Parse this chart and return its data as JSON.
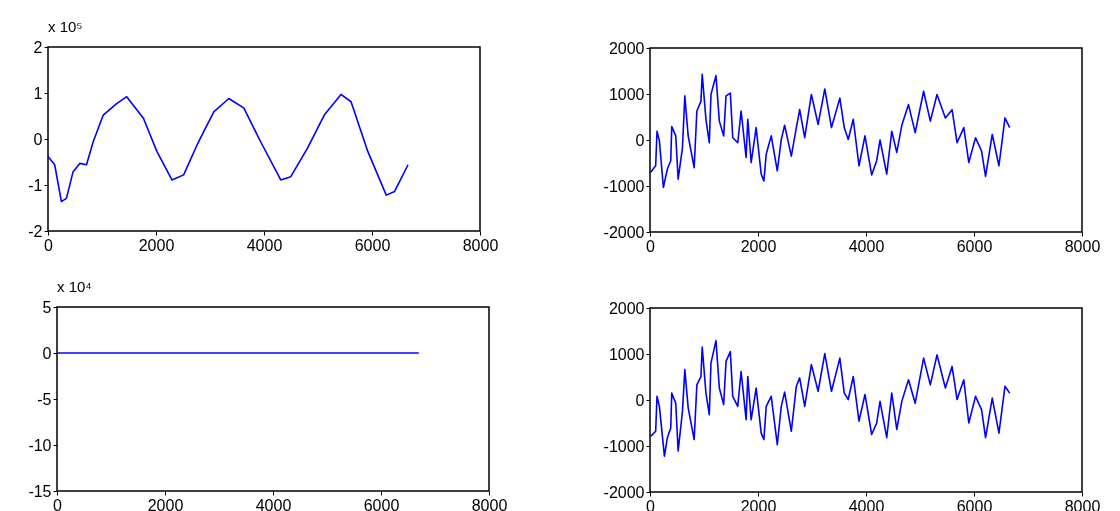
{
  "chart_data": [
    {
      "type": "line",
      "annotations": [
        "x 10⁵"
      ],
      "xlim": [
        0,
        8000
      ],
      "xticks": [
        0,
        2000,
        4000,
        6000,
        8000
      ],
      "ylim": [
        -2,
        2
      ],
      "yticks": [
        -2,
        -1,
        0,
        1,
        2
      ],
      "x": [
        0,
        124,
        248,
        341,
        465,
        589,
        713,
        837,
        1023,
        1271,
        1457,
        1767,
        2016,
        2295,
        2512,
        2760,
        3070,
        3349,
        3628,
        3938,
        4310,
        4496,
        4806,
        5116,
        5426,
        5612,
        5922,
        6264,
        6419,
        6667
      ],
      "series": [
        {
          "color": "#0000ff",
          "values": [
            -0.38,
            -0.56,
            -1.36,
            -1.29,
            -0.71,
            -0.53,
            -0.56,
            -0.06,
            0.52,
            0.77,
            0.92,
            0.45,
            -0.27,
            -0.89,
            -0.78,
            -0.13,
            0.59,
            0.88,
            0.67,
            -0.06,
            -0.89,
            -0.82,
            -0.2,
            0.52,
            0.97,
            0.81,
            -0.27,
            -1.22,
            -1.14,
            -0.56
          ]
        }
      ]
    },
    {
      "type": "line",
      "xlim": [
        0,
        8000
      ],
      "xticks": [
        0,
        2000,
        4000,
        6000,
        8000
      ],
      "ylim": [
        -2000,
        2000
      ],
      "yticks": [
        -2000,
        -1000,
        0,
        1000,
        2000
      ],
      "x": [
        12,
        105,
        130,
        174,
        248,
        322,
        384,
        403,
        477,
        521,
        601,
        645,
        707,
        818,
        868,
        943,
        967,
        1036,
        1098,
        1129,
        1222,
        1284,
        1364,
        1408,
        1488,
        1532,
        1625,
        1687,
        1780,
        1811,
        1873,
        1966,
        2059,
        2109,
        2152,
        2245,
        2357,
        2431,
        2493,
        2617,
        2710,
        2772,
        2865,
        2989,
        3113,
        3237,
        3361,
        3516,
        3597,
        3671,
        3764,
        3870,
        3981,
        4105,
        4198,
        4260,
        4384,
        4477,
        4570,
        4663,
        4787,
        4911,
        5067,
        5191,
        5315,
        5470,
        5594,
        5687,
        5811,
        5904,
        6028,
        6140,
        6214,
        6338,
        6462,
        6574,
        6661
      ],
      "series": [
        {
          "color": "#0000ff",
          "values": [
            -700,
            -560,
            190,
            -20,
            -1030,
            -630,
            -450,
            290,
            90,
            -850,
            -170,
            960,
            90,
            -600,
            630,
            840,
            1430,
            450,
            -60,
            990,
            1400,
            410,
            90,
            960,
            1020,
            50,
            -60,
            630,
            -380,
            450,
            -490,
            270,
            -740,
            -890,
            -310,
            90,
            -670,
            10,
            320,
            -350,
            270,
            660,
            50,
            990,
            340,
            1110,
            270,
            910,
            270,
            10,
            450,
            -560,
            90,
            -760,
            -450,
            0,
            -740,
            190,
            -270,
            320,
            770,
            160,
            1060,
            410,
            990,
            480,
            660,
            -60,
            270,
            -490,
            50,
            -240,
            -790,
            120,
            -560,
            480,
            270
          ]
        }
      ]
    },
    {
      "type": "line",
      "annotations": [
        "x 10⁴"
      ],
      "xlim": [
        0,
        8000
      ],
      "xticks": [
        0,
        2000,
        4000,
        6000,
        8000
      ],
      "ylim": [
        -15,
        5
      ],
      "yticks": [
        -15,
        -10,
        -5,
        0,
        5
      ],
      "x": [
        0,
        6700
      ],
      "series": [
        {
          "color": "#0000ff",
          "values": [
            0,
            0
          ]
        }
      ]
    },
    {
      "type": "line",
      "xlim": [
        0,
        8000
      ],
      "xticks": [
        0,
        2000,
        4000,
        6000,
        8000
      ],
      "ylim": [
        -2000,
        2000
      ],
      "yticks": [
        -2000,
        -1000,
        0,
        1000,
        2000
      ],
      "x": [
        12,
        105,
        130,
        174,
        267,
        322,
        384,
        403,
        477,
        521,
        601,
        645,
        707,
        818,
        868,
        943,
        967,
        1036,
        1098,
        1129,
        1222,
        1284,
        1364,
        1408,
        1488,
        1532,
        1625,
        1687,
        1780,
        1811,
        1873,
        1966,
        2059,
        2109,
        2152,
        2245,
        2357,
        2431,
        2493,
        2617,
        2710,
        2772,
        2865,
        2989,
        3113,
        3237,
        3361,
        3516,
        3597,
        3671,
        3764,
        3870,
        3981,
        4105,
        4198,
        4260,
        4384,
        4477,
        4570,
        4663,
        4787,
        4911,
        5067,
        5191,
        5315,
        5470,
        5594,
        5687,
        5811,
        5904,
        6028,
        6140,
        6214,
        6338,
        6462,
        6574,
        6661
      ],
      "series": [
        {
          "color": "#0000ff",
          "values": [
            -790,
            -680,
            80,
            -140,
            -1220,
            -820,
            -610,
            150,
            -70,
            -1110,
            -250,
            660,
            -170,
            -860,
            330,
            510,
            1150,
            150,
            -320,
            800,
            1290,
            260,
            -100,
            840,
            1050,
            80,
            -140,
            620,
            -430,
            510,
            -430,
            260,
            -720,
            -860,
            -140,
            80,
            -970,
            -140,
            170,
            -680,
            300,
            480,
            -140,
            770,
            190,
            1010,
            190,
            910,
            150,
            10,
            510,
            -460,
            120,
            -750,
            -500,
            -30,
            -820,
            150,
            -640,
            -30,
            440,
            -70,
            910,
            330,
            980,
            260,
            730,
            10,
            440,
            -500,
            80,
            -210,
            -820,
            40,
            -720,
            300,
            150
          ]
        }
      ]
    }
  ]
}
